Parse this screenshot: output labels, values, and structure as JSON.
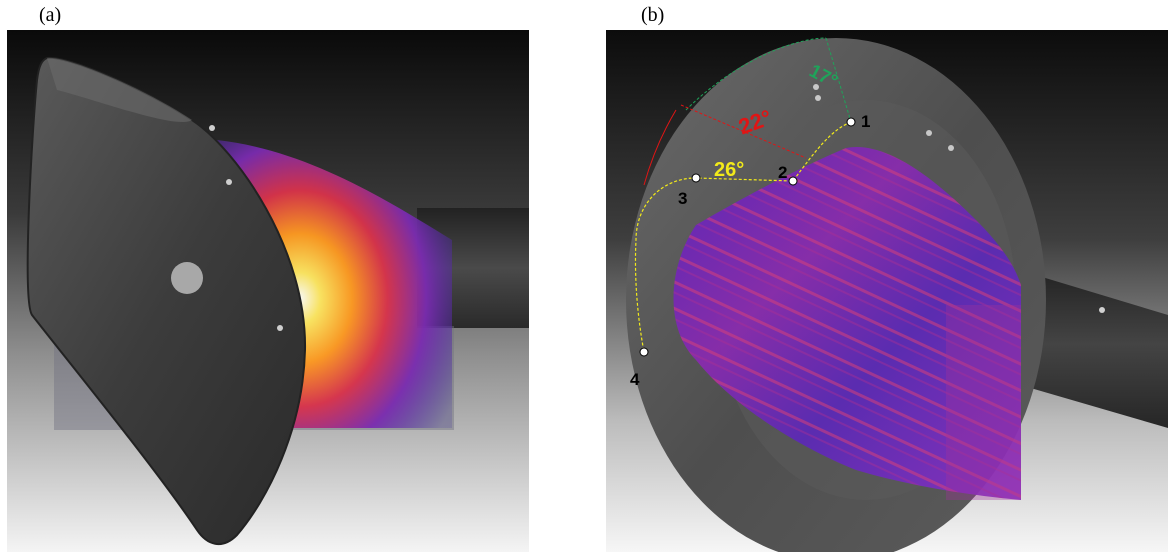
{
  "panels": [
    {
      "label": "(a)"
    },
    {
      "label": "(b)",
      "angles": [
        {
          "text": "17°",
          "color": "#1fa35a"
        },
        {
          "text": "22°",
          "color": "#e01515"
        },
        {
          "text": "26°",
          "color": "#f2ea1a"
        }
      ],
      "points": [
        "1",
        "2",
        "3",
        "4"
      ]
    }
  ]
}
